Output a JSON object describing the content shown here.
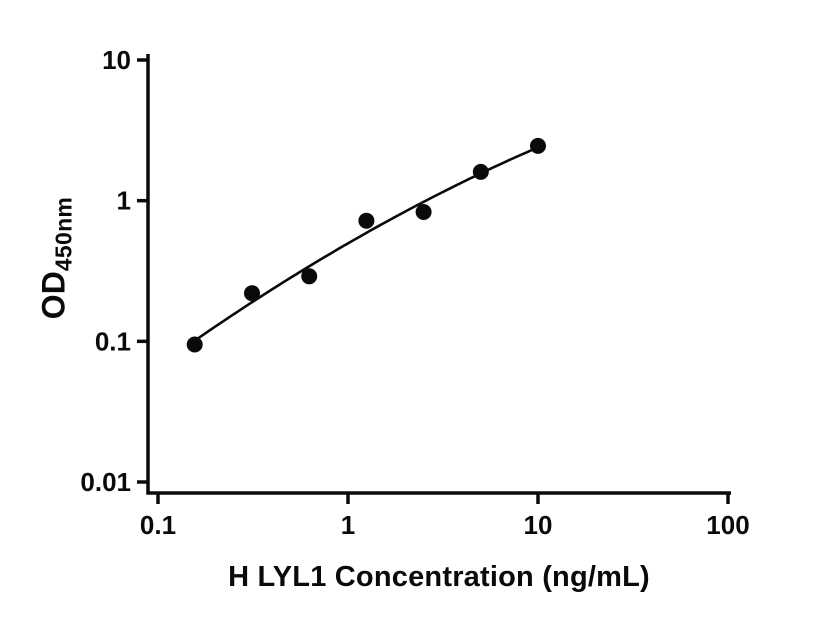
{
  "figure": {
    "background": "#ffffff",
    "axis_color": "#0a0a0a"
  },
  "chart_data": {
    "type": "scatter",
    "title": "",
    "xlabel": "H LYL1 Concentration (ng/mL)",
    "ylabel_main": "OD",
    "ylabel_sub": "450nm",
    "xscale": "log",
    "yscale": "log",
    "xlim": [
      0.1,
      100
    ],
    "ylim": [
      0.01,
      10
    ],
    "xticks": [
      0.1,
      1,
      10,
      100
    ],
    "xtick_labels": [
      "0.1",
      "1",
      "10",
      "100"
    ],
    "yticks": [
      0.01,
      0.1,
      1,
      10
    ],
    "ytick_labels": [
      "0.01",
      "0.1",
      "1",
      "10"
    ],
    "grid": false,
    "legend": "none",
    "series": [
      {
        "x": [
          0.156,
          0.3125,
          0.625,
          1.25,
          2.5,
          5,
          10
        ],
        "y": [
          0.095,
          0.22,
          0.29,
          0.72,
          0.83,
          1.6,
          2.45
        ],
        "marker": "circle",
        "marker_color": "#0a0a0a",
        "line_color": "#0a0a0a",
        "fit": "smooth curve through standards"
      }
    ]
  }
}
